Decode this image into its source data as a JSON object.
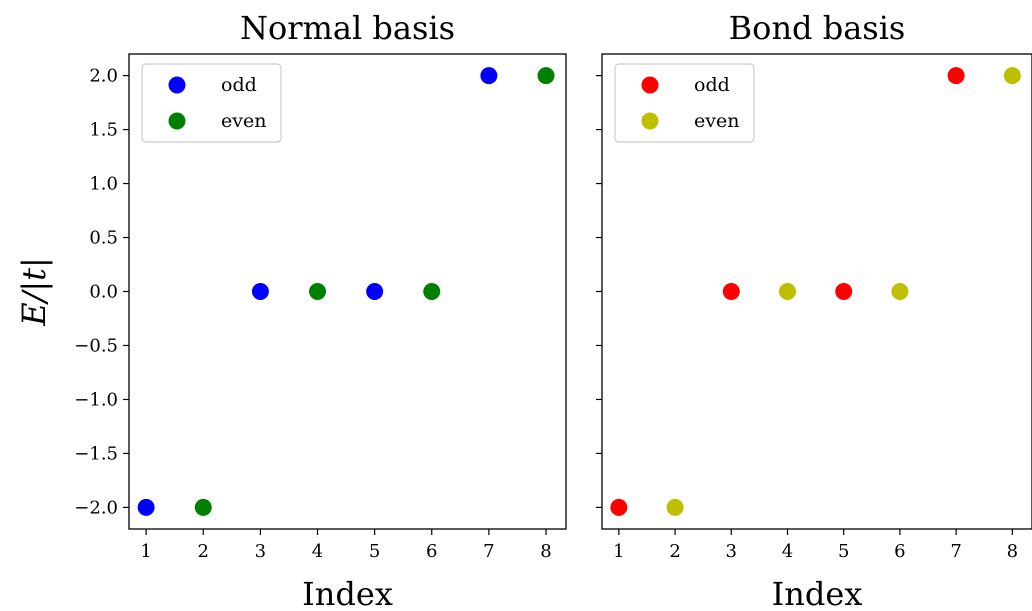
{
  "chart_data": [
    {
      "type": "scatter",
      "title": "Normal basis",
      "xlabel": "Index",
      "ylabel": "E/|t|",
      "xlim": [
        0.7,
        8.35
      ],
      "ylim": [
        -2.2,
        2.2
      ],
      "xticks": [
        1,
        2,
        3,
        4,
        5,
        6,
        7,
        8
      ],
      "yticks": [
        2.0,
        1.5,
        1.0,
        0.5,
        0.0,
        -0.5,
        -1.0,
        -1.5,
        -2.0
      ],
      "ytick_labels": [
        "2.0",
        "1.5",
        "1.0",
        "0.5",
        "0.0",
        "−0.5",
        "−1.0",
        "−1.5",
        "−2.0"
      ],
      "show_ytick_labels": true,
      "legend": "upper-left",
      "series": [
        {
          "name": "odd",
          "color": "#0000ff",
          "x": [
            1,
            3,
            5,
            7
          ],
          "y": [
            -2.0,
            0.0,
            0.0,
            2.0
          ]
        },
        {
          "name": "even",
          "color": "#008000",
          "x": [
            2,
            4,
            6,
            8
          ],
          "y": [
            -2.0,
            0.0,
            0.0,
            2.0
          ]
        }
      ]
    },
    {
      "type": "scatter",
      "title": "Bond basis",
      "xlabel": "Index",
      "ylabel": "",
      "xlim": [
        0.7,
        8.35
      ],
      "ylim": [
        -2.2,
        2.2
      ],
      "xticks": [
        1,
        2,
        3,
        4,
        5,
        6,
        7,
        8
      ],
      "yticks": [
        2.0,
        1.5,
        1.0,
        0.5,
        0.0,
        -0.5,
        -1.0,
        -1.5,
        -2.0
      ],
      "ytick_labels": [],
      "show_ytick_labels": false,
      "legend": "upper-left",
      "series": [
        {
          "name": "odd",
          "color": "#ff0000",
          "x": [
            1,
            3,
            5,
            7
          ],
          "y": [
            -2.0,
            0.0,
            0.0,
            2.0
          ]
        },
        {
          "name": "even",
          "color": "#bfbf00",
          "x": [
            2,
            4,
            6,
            8
          ],
          "y": [
            -2.0,
            0.0,
            0.0,
            2.0
          ]
        }
      ]
    }
  ]
}
